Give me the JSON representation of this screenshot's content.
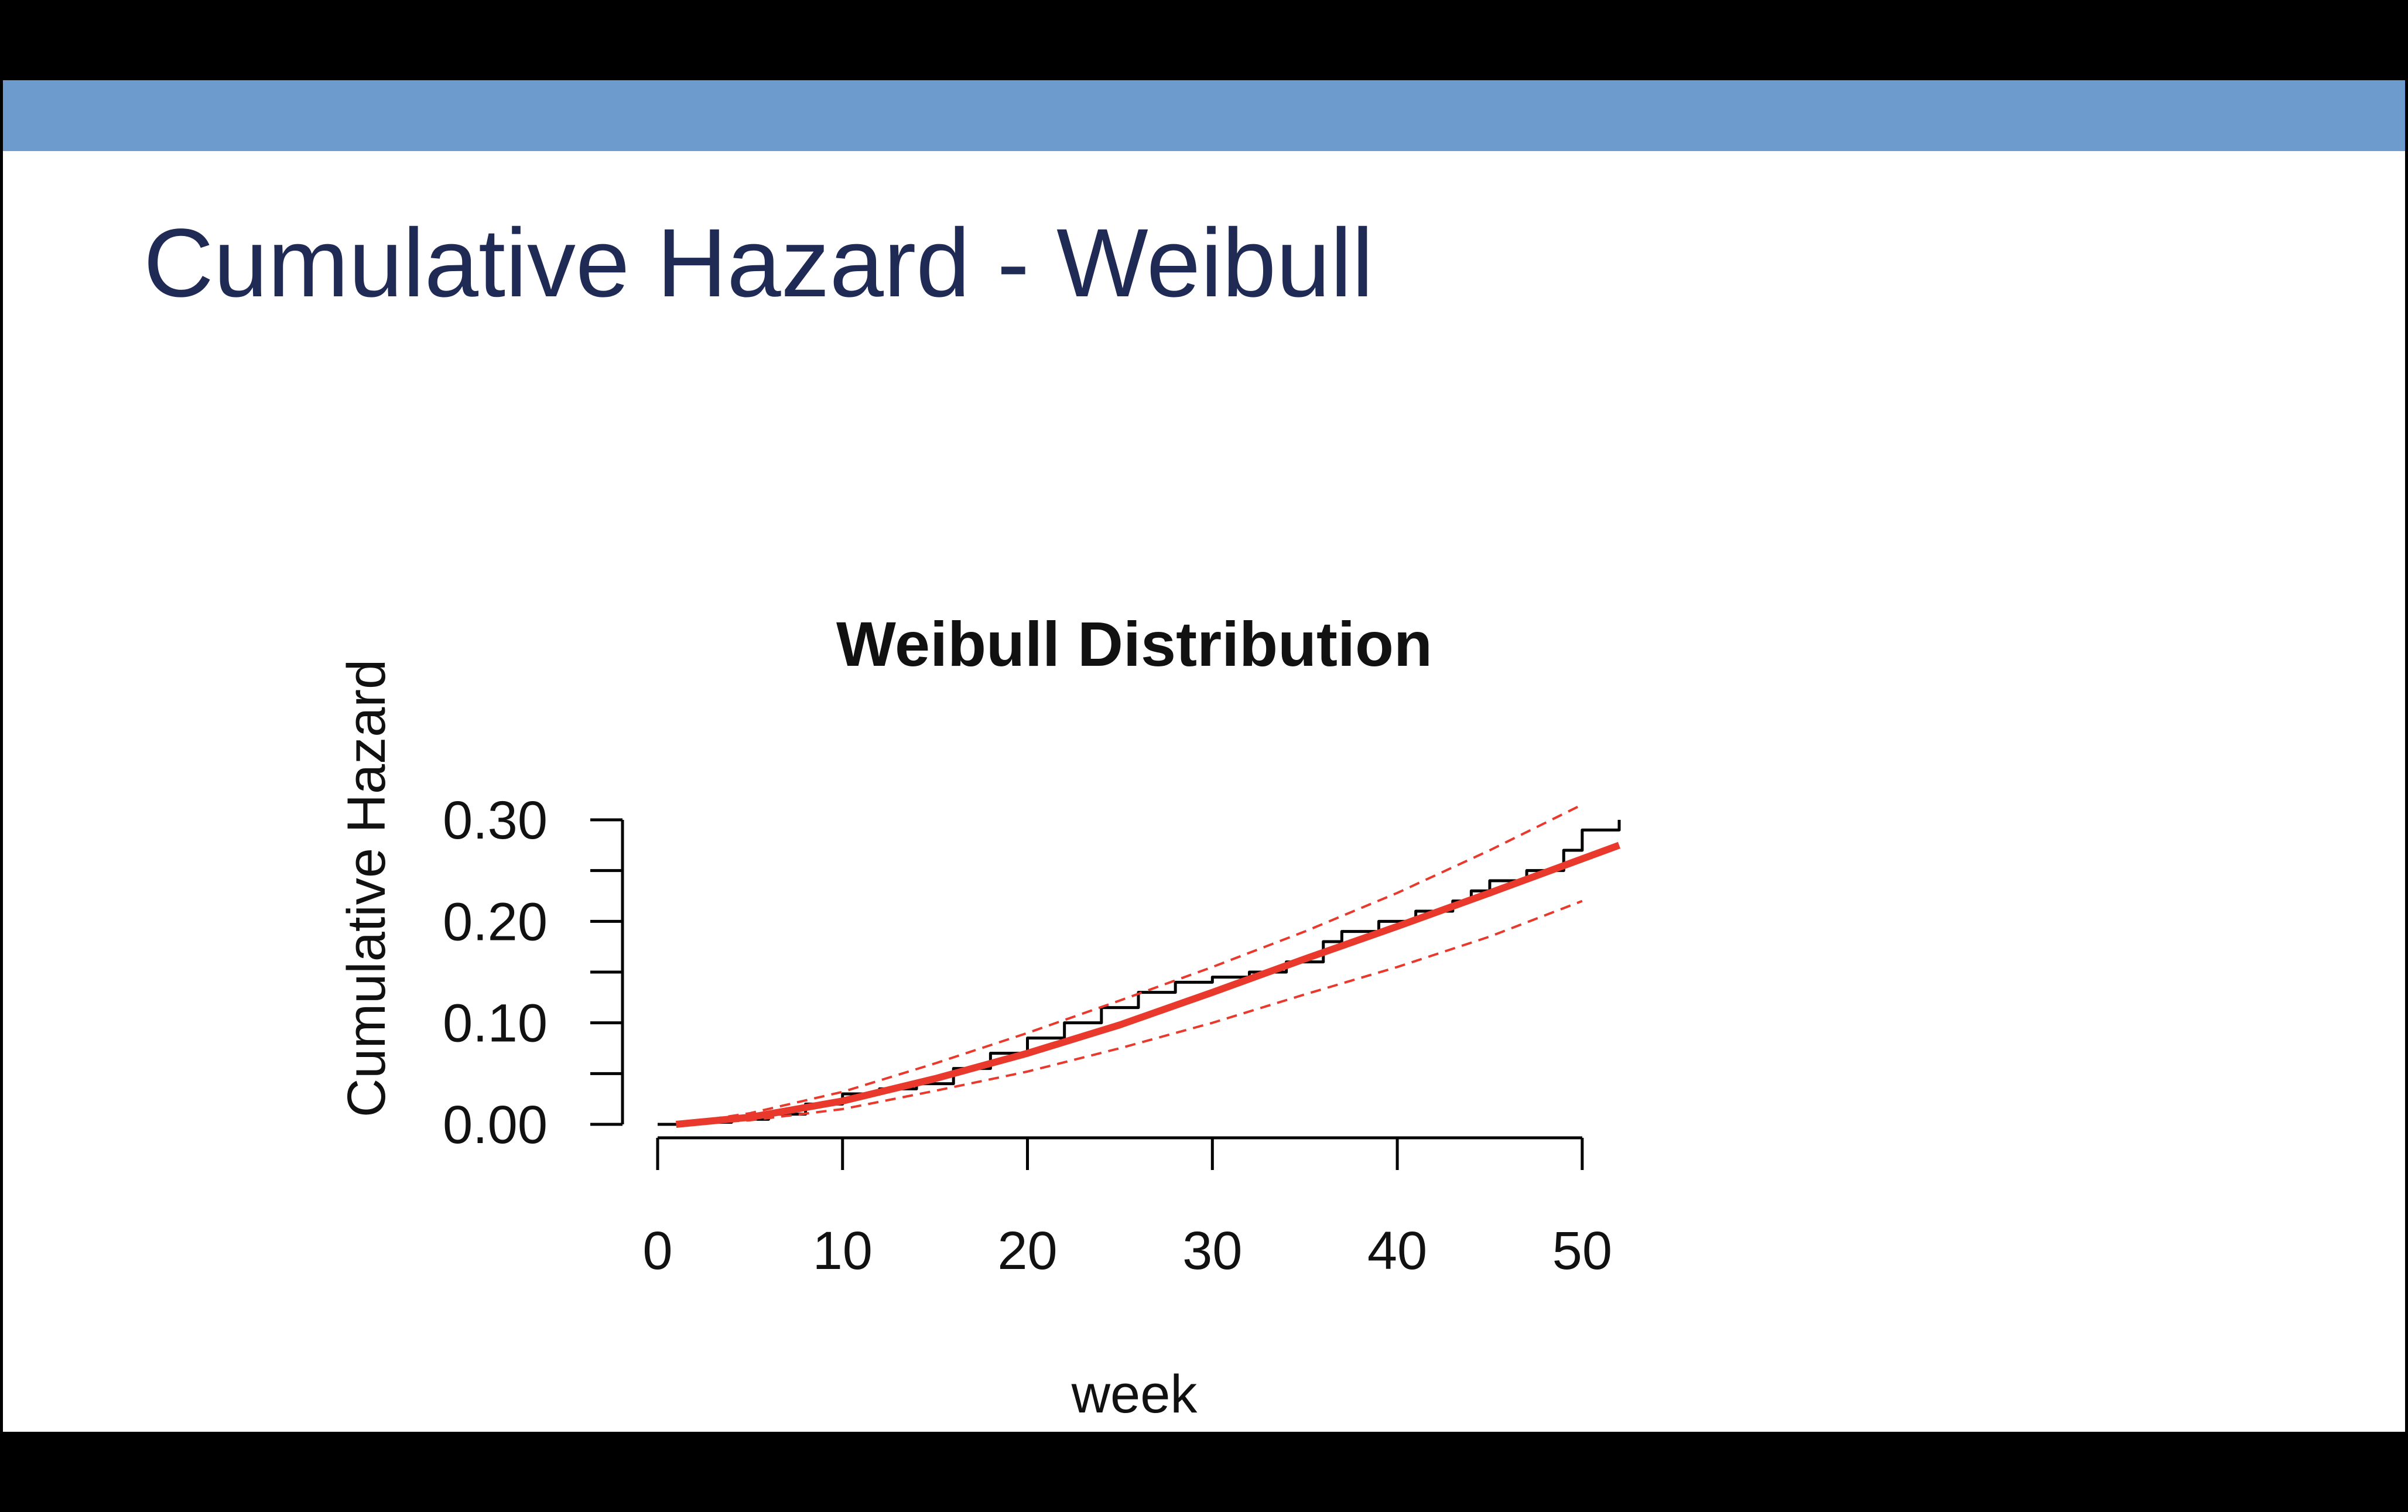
{
  "slide": {
    "title": "Cumulative Hazard - Weibull",
    "header_color": "#6d9bcd",
    "title_color": "#1f2a55"
  },
  "chart_data": {
    "type": "line",
    "title": "Weibull Distribution",
    "xlabel": "week",
    "ylabel": "Cumulative Hazard",
    "xlim": [
      0,
      52
    ],
    "ylim": [
      0,
      0.3
    ],
    "x_ticks": [
      0,
      10,
      20,
      30,
      40,
      50
    ],
    "x_tick_labels": [
      "0",
      "10",
      "20",
      "30",
      "40",
      "50"
    ],
    "y_ticks": [
      0,
      0.05,
      0.1,
      0.15,
      0.2,
      0.25,
      0.3
    ],
    "y_tick_labels": [
      "0.00",
      "0.10",
      "0.20",
      "0.30"
    ],
    "y_labeled_ticks": [
      0,
      0.1,
      0.2,
      0.3
    ],
    "grid": false,
    "legend": "none",
    "series": [
      {
        "style": "step",
        "color": "#000000",
        "x": [
          0,
          1,
          2,
          4,
          6,
          8,
          10,
          12,
          14,
          16,
          18,
          20,
          22,
          24,
          26,
          28,
          30,
          32,
          34,
          36,
          37,
          39,
          41,
          43,
          44,
          45,
          47,
          49,
          50,
          52
        ],
        "y": [
          0.0,
          0.0,
          0.002,
          0.005,
          0.01,
          0.02,
          0.03,
          0.035,
          0.04,
          0.055,
          0.07,
          0.085,
          0.1,
          0.115,
          0.13,
          0.14,
          0.145,
          0.15,
          0.16,
          0.18,
          0.19,
          0.2,
          0.21,
          0.22,
          0.23,
          0.24,
          0.25,
          0.27,
          0.29,
          0.3
        ]
      },
      {
        "style": "solid",
        "color": "#e8392c",
        "x": [
          1,
          5,
          10,
          15,
          20,
          25,
          30,
          35,
          40,
          45,
          52
        ],
        "y": [
          0.0,
          0.007,
          0.023,
          0.045,
          0.07,
          0.098,
          0.13,
          0.163,
          0.195,
          0.228,
          0.275
        ]
      },
      {
        "style": "dashed",
        "color": "#e8392c",
        "x": [
          1,
          5,
          10,
          15,
          20,
          25,
          30,
          35,
          40,
          45,
          50
        ],
        "y": [
          0.0,
          0.011,
          0.032,
          0.06,
          0.09,
          0.122,
          0.155,
          0.19,
          0.228,
          0.27,
          0.315
        ]
      },
      {
        "style": "dashed",
        "color": "#e8392c",
        "x": [
          1,
          5,
          10,
          15,
          20,
          25,
          30,
          35,
          40,
          45,
          50
        ],
        "y": [
          0.0,
          0.004,
          0.015,
          0.033,
          0.052,
          0.075,
          0.1,
          0.128,
          0.155,
          0.185,
          0.22
        ]
      }
    ]
  }
}
